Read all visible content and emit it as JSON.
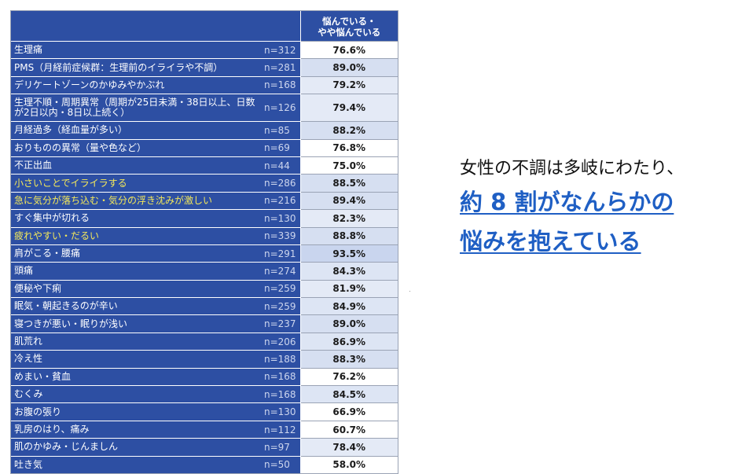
{
  "colors": {
    "label_bg": "#2d4fa3",
    "label_text": "#ffffff",
    "highlight_text": "#f4e85a",
    "callout_accent": "#1f5fc4"
  },
  "chart_data": {
    "type": "table",
    "column_header": "悩んでいる・\nやや悩んでいる",
    "rows": [
      {
        "label": "生理痛",
        "n": "n=312",
        "value": "76.6%",
        "pct": 76.6,
        "highlight": false,
        "shade": "#ffffff"
      },
      {
        "label": "PMS（月経前症候群：生理前のイライラや不調）",
        "n": "n=281",
        "value": "89.0%",
        "pct": 89.0,
        "highlight": false,
        "shade": "#d6dff1"
      },
      {
        "label": "デリケートゾーンのかゆみやかぶれ",
        "n": "n=168",
        "value": "79.2%",
        "pct": 79.2,
        "highlight": false,
        "shade": "#e4eaf6"
      },
      {
        "label": "生理不順・周期異常（周期が25日未満・38日以上、日数が2日以内・8日以上続く）",
        "n": "n=126",
        "value": "79.4%",
        "pct": 79.4,
        "highlight": false,
        "shade": "#e4eaf6",
        "tall": true
      },
      {
        "label": "月経過多（経血量が多い）",
        "n": "n=85",
        "value": "88.2%",
        "pct": 88.2,
        "highlight": false,
        "shade": "#d6dff1"
      },
      {
        "label": "おりものの異常（量や色など）",
        "n": "n=69",
        "value": "76.8%",
        "pct": 76.8,
        "highlight": false,
        "shade": "#ffffff"
      },
      {
        "label": "不正出血",
        "n": "n=44",
        "value": "75.0%",
        "pct": 75.0,
        "highlight": false,
        "shade": "#ffffff"
      },
      {
        "label": "小さいことでイライラする",
        "n": "n=286",
        "value": "88.5%",
        "pct": 88.5,
        "highlight": true,
        "shade": "#d6dff1"
      },
      {
        "label": "急に気分が落ち込む・気分の浮き沈みが激しい",
        "n": "n=216",
        "value": "89.4%",
        "pct": 89.4,
        "highlight": true,
        "shade": "#d6dff1"
      },
      {
        "label": "すぐ集中が切れる",
        "n": "n=130",
        "value": "82.3%",
        "pct": 82.3,
        "highlight": false,
        "shade": "#e4eaf6"
      },
      {
        "label": "疲れやすい・だるい",
        "n": "n=339",
        "value": "88.8%",
        "pct": 88.8,
        "highlight": true,
        "shade": "#d6dff1"
      },
      {
        "label": "肩がこる・腰痛",
        "n": "n=291",
        "value": "93.5%",
        "pct": 93.5,
        "highlight": false,
        "shade": "#c9d5ee"
      },
      {
        "label": "頭痛",
        "n": "n=274",
        "value": "84.3%",
        "pct": 84.3,
        "highlight": false,
        "shade": "#dde5f4"
      },
      {
        "label": "便秘や下痢",
        "n": "n=259",
        "value": "81.9%",
        "pct": 81.9,
        "highlight": false,
        "shade": "#e4eaf6"
      },
      {
        "label": "眠気・朝起きるのが辛い",
        "n": "n=259",
        "value": "84.9%",
        "pct": 84.9,
        "highlight": false,
        "shade": "#dde5f4"
      },
      {
        "label": "寝つきが悪い・眠りが浅い",
        "n": "n=237",
        "value": "89.0%",
        "pct": 89.0,
        "highlight": false,
        "shade": "#d6dff1"
      },
      {
        "label": "肌荒れ",
        "n": "n=206",
        "value": "86.9%",
        "pct": 86.9,
        "highlight": false,
        "shade": "#dde5f4"
      },
      {
        "label": "冷え性",
        "n": "n=188",
        "value": "88.3%",
        "pct": 88.3,
        "highlight": false,
        "shade": "#d6dff1"
      },
      {
        "label": "めまい・貧血",
        "n": "n=168",
        "value": "76.2%",
        "pct": 76.2,
        "highlight": false,
        "shade": "#ffffff"
      },
      {
        "label": "むくみ",
        "n": "n=168",
        "value": "84.5%",
        "pct": 84.5,
        "highlight": false,
        "shade": "#dde5f4"
      },
      {
        "label": "お腹の張り",
        "n": "n=130",
        "value": "66.9%",
        "pct": 66.9,
        "highlight": false,
        "shade": "#ffffff"
      },
      {
        "label": "乳房のはり、痛み",
        "n": "n=112",
        "value": "60.7%",
        "pct": 60.7,
        "highlight": false,
        "shade": "#ffffff"
      },
      {
        "label": "肌のかゆみ・じんましん",
        "n": "n=97",
        "value": "78.4%",
        "pct": 78.4,
        "highlight": false,
        "shade": "#e4eaf6"
      },
      {
        "label": "吐き気",
        "n": "n=50",
        "value": "58.0%",
        "pct": 58.0,
        "highlight": false,
        "shade": "#ffffff"
      }
    ]
  },
  "callout": {
    "line1": "女性の不調は多岐にわたり、",
    "line2": "約 8 割がなんらかの",
    "line3": "悩みを抱えている"
  }
}
